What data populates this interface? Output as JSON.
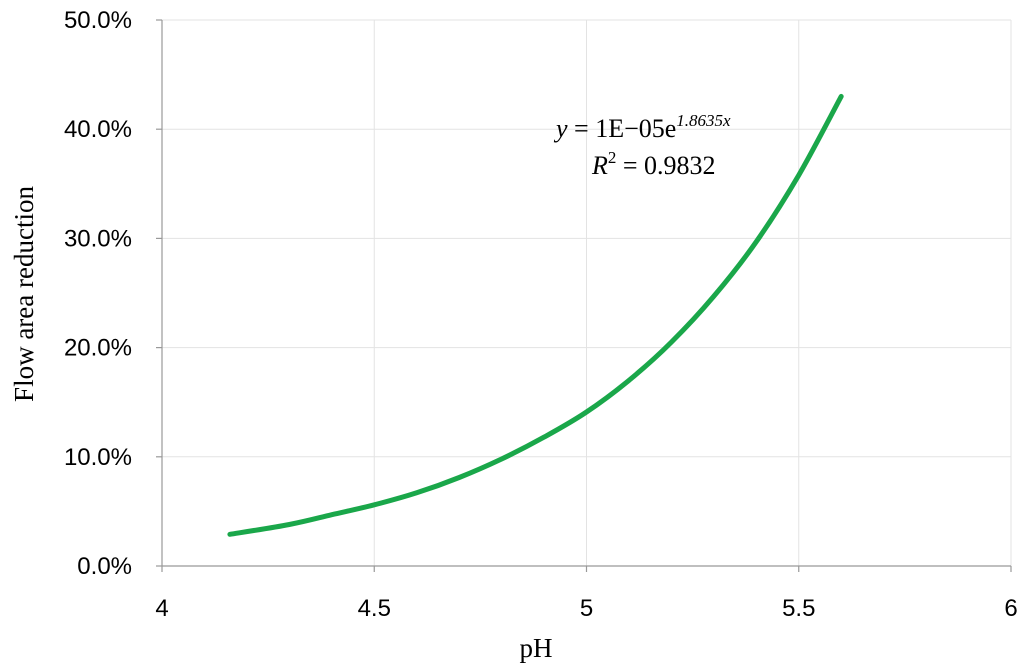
{
  "chart_data": {
    "type": "line",
    "xlabel": "pH",
    "ylabel": "Flow area reduction",
    "xlim": [
      4,
      6
    ],
    "ylim": [
      0,
      0.5
    ],
    "x_ticks": [
      "4",
      "4.5",
      "5",
      "5.5",
      "6"
    ],
    "y_ticks": [
      "0.0%",
      "10.0%",
      "20.0%",
      "30.0%",
      "40.0%",
      "50.0%"
    ],
    "grid": true,
    "series": [
      {
        "color": "#1aa74a",
        "x": [
          4.16,
          4.3,
          4.4,
          4.5,
          4.6,
          4.7,
          4.8,
          4.9,
          5.0,
          5.1,
          5.2,
          5.3,
          5.4,
          5.5,
          5.6
        ],
        "y": [
          0.029,
          0.038,
          0.047,
          0.056,
          0.067,
          0.081,
          0.098,
          0.118,
          0.141,
          0.17,
          0.205,
          0.247,
          0.297,
          0.358,
          0.43
        ]
      }
    ],
    "trendline": {
      "equation_y": "y",
      "equation_rhs": " = 1E−05e",
      "equation_exp": "1.8635x",
      "r2_label": "R",
      "r2_sup": "2",
      "r2_value": " = 0.9832"
    }
  }
}
